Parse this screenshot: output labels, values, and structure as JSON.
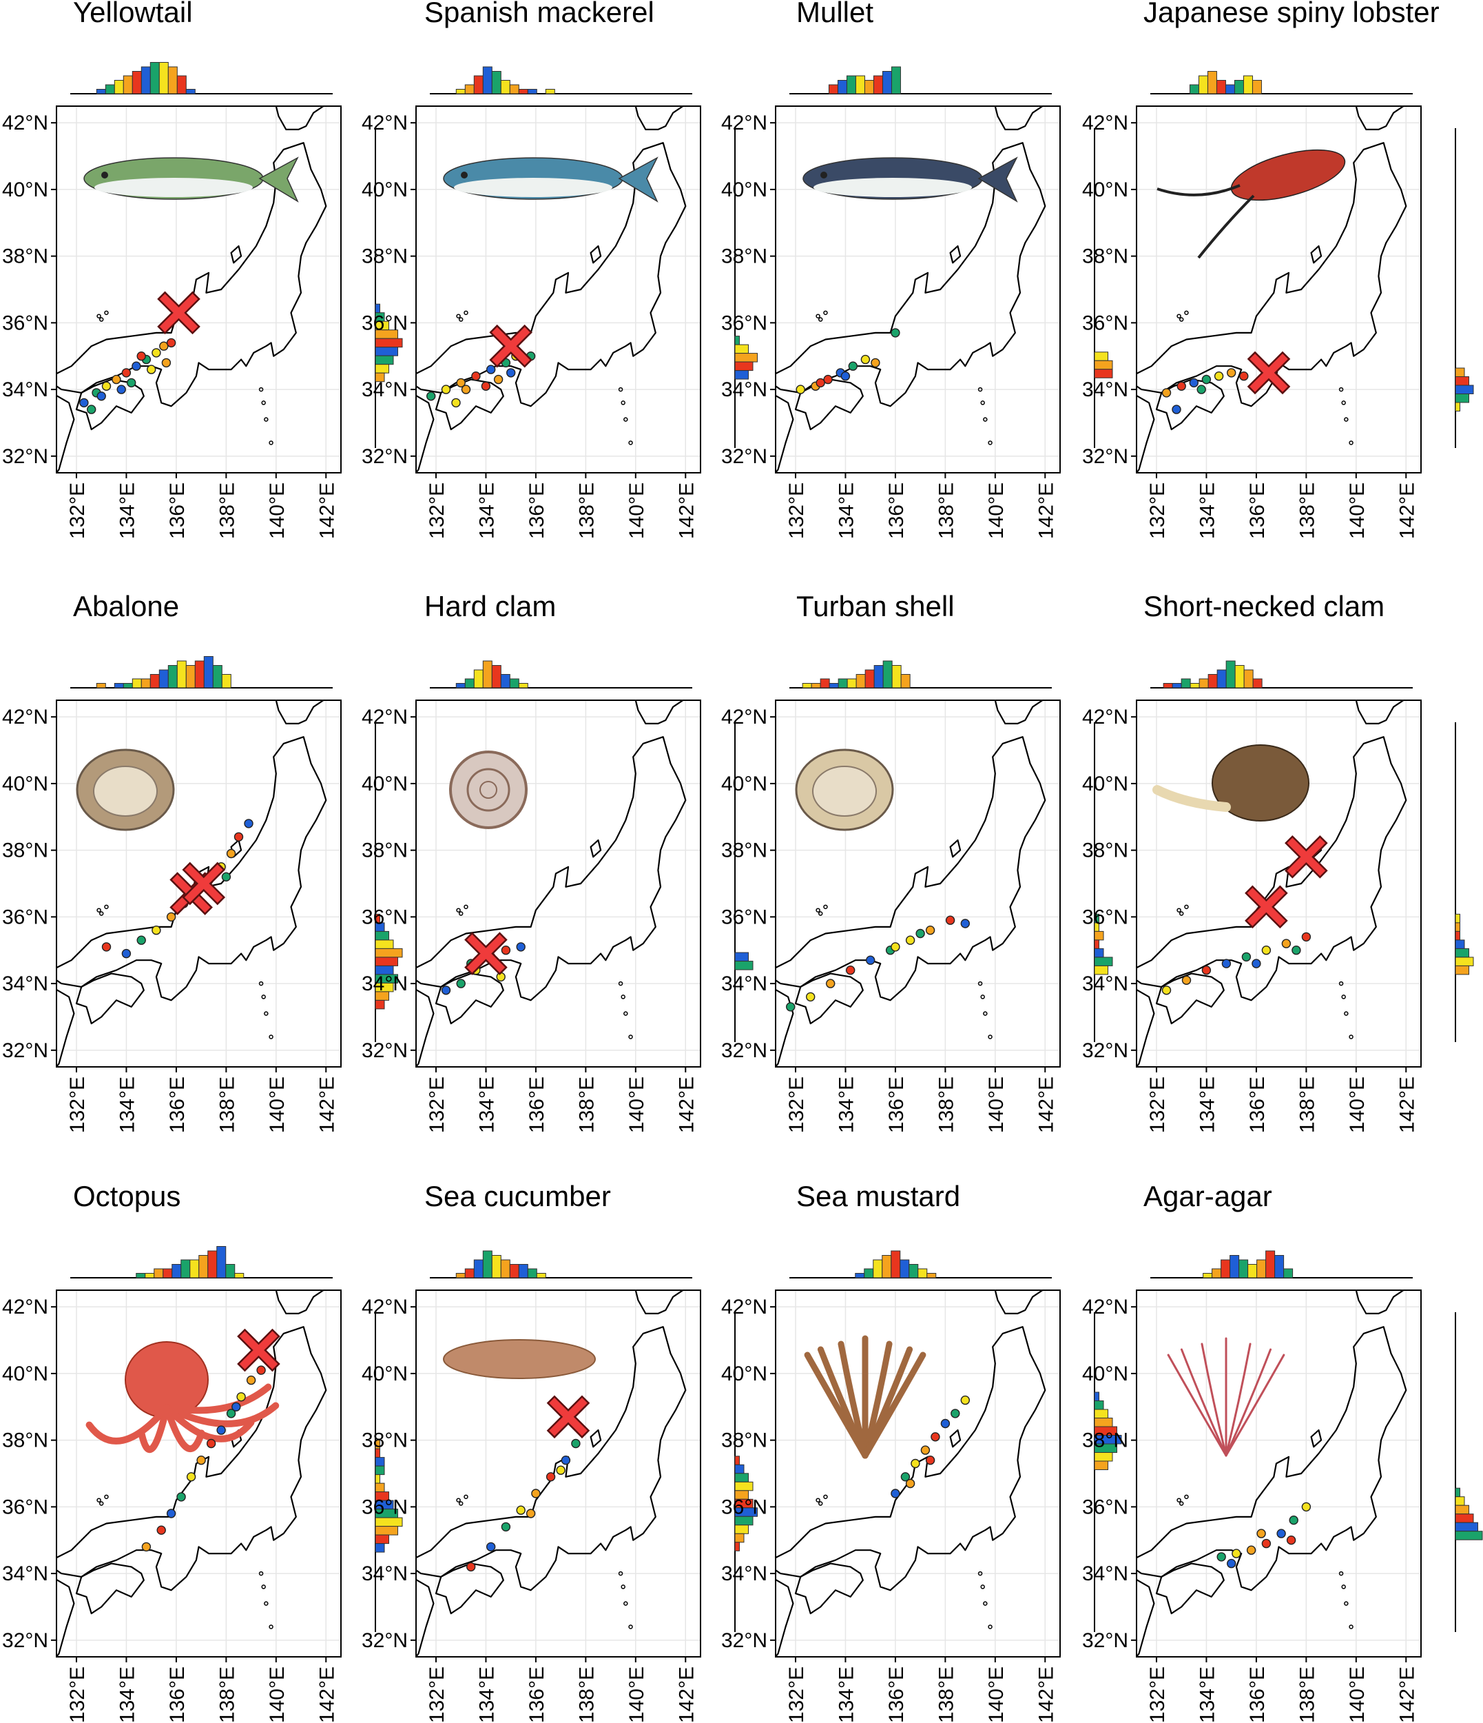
{
  "chart_data": {
    "type": "scatter",
    "axes": {
      "lon_ticks": [
        "132°E",
        "134°E",
        "136°E",
        "138°E",
        "140°E",
        "142°E"
      ],
      "lat_ticks": [
        "32°N",
        "34°N",
        "36°N",
        "38°N",
        "40°N",
        "42°N"
      ],
      "xlim": [
        131.2,
        142.6
      ],
      "ylim": [
        31.5,
        42.5
      ],
      "grid": true
    },
    "colors": {
      "blue": "#1f5fd6",
      "green": "#1aa36a",
      "yellow": "#f5e21e",
      "orange": "#f5a31e",
      "red": "#e8361e",
      "cross": "#ef3b3b"
    },
    "panels": [
      {
        "title": "Yellowtail",
        "icon": "fish-icon",
        "icon_color": "#7aa66a",
        "points": [
          [
            132.3,
            33.6
          ],
          [
            132.8,
            33.9
          ],
          [
            133.2,
            34.1
          ],
          [
            133.6,
            34.3
          ],
          [
            134.0,
            34.5
          ],
          [
            134.4,
            34.7
          ],
          [
            134.8,
            34.9
          ],
          [
            135.2,
            35.1
          ],
          [
            135.5,
            35.3
          ],
          [
            135.8,
            35.4
          ],
          [
            133.0,
            33.8
          ],
          [
            134.2,
            34.2
          ],
          [
            135.0,
            34.6
          ],
          [
            135.6,
            34.8
          ],
          [
            134.6,
            35.0
          ],
          [
            133.8,
            34.0
          ],
          [
            132.6,
            33.4
          ]
        ],
        "cross": [
          [
            136.1,
            36.3
          ]
        ],
        "top_hist": [
          1,
          2,
          3,
          4,
          5,
          6,
          7,
          7,
          6,
          4,
          1
        ],
        "top_start": 0.1,
        "side_hist": [
          1,
          2,
          3,
          5,
          6,
          5,
          4,
          3,
          2
        ],
        "side_start": 0.55
      },
      {
        "title": "Spanish mackerel",
        "icon": "fish-icon",
        "icon_color": "#4a8aa8",
        "points": [
          [
            131.8,
            33.8
          ],
          [
            132.4,
            34.0
          ],
          [
            133.0,
            34.2
          ],
          [
            133.6,
            34.4
          ],
          [
            134.2,
            34.6
          ],
          [
            134.8,
            34.8
          ],
          [
            135.2,
            35.0
          ],
          [
            133.2,
            34.0
          ],
          [
            134.0,
            34.1
          ],
          [
            135.0,
            34.5
          ],
          [
            135.8,
            35.0
          ],
          [
            132.8,
            33.6
          ],
          [
            134.5,
            34.3
          ]
        ],
        "cross": [
          [
            135.0,
            35.3
          ]
        ],
        "top_hist": [
          1,
          2,
          4,
          6,
          5,
          3,
          2,
          1,
          1,
          0,
          1
        ],
        "top_start": 0.1,
        "side_hist": [
          1,
          3,
          5,
          4,
          3
        ],
        "side_start": 0.65
      },
      {
        "title": "Mullet",
        "icon": "fish-icon",
        "icon_color": "#3a4a66",
        "points": [
          [
            132.2,
            34.0
          ],
          [
            132.8,
            34.1
          ],
          [
            133.3,
            34.3
          ],
          [
            133.8,
            34.5
          ],
          [
            134.3,
            34.7
          ],
          [
            134.8,
            34.9
          ],
          [
            135.2,
            34.8
          ],
          [
            133.0,
            34.2
          ],
          [
            134.0,
            34.4
          ],
          [
            136.0,
            35.7
          ]
        ],
        "cross": [],
        "top_hist": [
          2,
          3,
          4,
          4,
          3,
          4,
          5,
          6
        ],
        "top_start": 0.15,
        "side_hist": [
          3,
          4,
          4
        ],
        "side_start": 0.7
      },
      {
        "title": "Japanese spiny lobster",
        "icon": "lobster-icon",
        "icon_color": "#c0392b",
        "points": [
          [
            132.4,
            33.9
          ],
          [
            133.0,
            34.1
          ],
          [
            133.5,
            34.2
          ],
          [
            134.0,
            34.3
          ],
          [
            134.5,
            34.4
          ],
          [
            135.0,
            34.5
          ],
          [
            135.5,
            34.4
          ],
          [
            132.8,
            33.4
          ],
          [
            133.8,
            34.0
          ]
        ],
        "cross": [
          [
            136.5,
            34.5
          ]
        ],
        "top_hist": [
          2,
          4,
          5,
          3,
          2,
          3,
          4,
          3
        ],
        "top_start": 0.15,
        "side_hist": [
          2,
          3,
          4,
          3,
          1
        ],
        "side_start": 0.75
      },
      {
        "title": "Abalone",
        "icon": "abalone-icon",
        "icon_color": "#b39a7a",
        "points": [
          [
            133.2,
            35.1
          ],
          [
            134.0,
            34.9
          ],
          [
            134.6,
            35.3
          ],
          [
            135.2,
            35.6
          ],
          [
            135.8,
            36.0
          ],
          [
            136.3,
            36.4
          ],
          [
            136.8,
            36.8
          ],
          [
            137.3,
            37.1
          ],
          [
            137.8,
            37.5
          ],
          [
            138.2,
            37.9
          ],
          [
            138.5,
            38.4
          ],
          [
            138.9,
            38.8
          ],
          [
            138.0,
            37.2
          ],
          [
            137.0,
            36.4
          ]
        ],
        "cross": [
          [
            136.6,
            36.7
          ],
          [
            137.1,
            37.0
          ]
        ],
        "top_hist": [
          1,
          0,
          1,
          1,
          2,
          2,
          3,
          4,
          5,
          6,
          5,
          6,
          7,
          5,
          3
        ],
        "top_start": 0.1,
        "side_hist": [
          1,
          2,
          3,
          4,
          6,
          5,
          4,
          5,
          4,
          3,
          2
        ],
        "side_start": 0.6
      },
      {
        "title": "Hard clam",
        "icon": "shell-icon",
        "icon_color": "#8a6a5a",
        "points": [
          [
            132.4,
            33.8
          ],
          [
            133.0,
            34.0
          ],
          [
            133.6,
            34.4
          ],
          [
            134.2,
            34.8
          ],
          [
            134.8,
            35.0
          ],
          [
            135.4,
            35.1
          ],
          [
            133.4,
            34.6
          ],
          [
            134.6,
            34.2
          ]
        ],
        "cross": [
          [
            134.0,
            34.9
          ]
        ],
        "top_hist": [
          1,
          2,
          4,
          6,
          5,
          3,
          2,
          1
        ],
        "top_start": 0.1,
        "side_hist": [
          3,
          4
        ],
        "side_start": 0.72
      },
      {
        "title": "Turban shell",
        "icon": "clam-icon",
        "icon_color": "#d9c8a5",
        "points": [
          [
            131.8,
            33.3
          ],
          [
            132.6,
            33.6
          ],
          [
            133.4,
            34.0
          ],
          [
            134.2,
            34.4
          ],
          [
            135.0,
            34.7
          ],
          [
            135.8,
            35.0
          ],
          [
            136.6,
            35.3
          ],
          [
            137.4,
            35.6
          ],
          [
            138.2,
            35.9
          ],
          [
            138.8,
            35.8
          ],
          [
            137.0,
            35.5
          ],
          [
            136.0,
            35.1
          ]
        ],
        "cross": [],
        "top_hist": [
          1,
          1,
          2,
          1,
          2,
          2,
          3,
          4,
          5,
          6,
          5,
          3
        ],
        "top_start": 0.05,
        "side_hist": [
          1,
          1,
          2,
          1,
          2,
          4,
          3
        ],
        "side_start": 0.6
      },
      {
        "title": "Short-necked clam",
        "icon": "snail-icon",
        "icon_color": "#7a5a3a",
        "points": [
          [
            132.4,
            33.8
          ],
          [
            133.2,
            34.1
          ],
          [
            134.0,
            34.4
          ],
          [
            134.8,
            34.6
          ],
          [
            135.6,
            34.8
          ],
          [
            136.4,
            35.0
          ],
          [
            137.2,
            35.2
          ],
          [
            138.0,
            35.4
          ],
          [
            136.0,
            34.6
          ],
          [
            137.6,
            35.0
          ]
        ],
        "cross": [
          [
            138.0,
            37.8
          ],
          [
            136.4,
            36.3
          ]
        ],
        "top_hist": [
          1,
          1,
          2,
          1,
          2,
          3,
          4,
          6,
          5,
          4,
          2
        ],
        "top_start": 0.05,
        "side_hist": [
          1,
          1,
          1,
          2,
          3,
          4,
          3
        ],
        "side_start": 0.6
      },
      {
        "title": "Octopus",
        "icon": "octopus-icon",
        "icon_color": "#e0584a",
        "points": [
          [
            134.8,
            34.8
          ],
          [
            135.4,
            35.3
          ],
          [
            135.8,
            35.8
          ],
          [
            136.2,
            36.3
          ],
          [
            136.6,
            36.9
          ],
          [
            137.0,
            37.4
          ],
          [
            137.4,
            37.9
          ],
          [
            137.8,
            38.3
          ],
          [
            138.2,
            38.8
          ],
          [
            138.6,
            39.3
          ],
          [
            139.0,
            39.8
          ],
          [
            139.4,
            40.1
          ],
          [
            138.4,
            39.0
          ]
        ],
        "cross": [
          [
            139.3,
            40.7
          ]
        ],
        "top_hist": [
          1,
          1,
          2,
          2,
          3,
          4,
          4,
          5,
          6,
          7,
          3,
          1
        ],
        "top_start": 0.25,
        "side_hist": [
          1,
          1,
          2,
          2,
          1,
          2,
          3,
          4,
          5,
          6,
          5,
          3,
          2
        ],
        "side_start": 0.4
      },
      {
        "title": "Sea cucumber",
        "icon": "cucumber-icon",
        "icon_color": "#c08a6a",
        "points": [
          [
            133.4,
            34.2
          ],
          [
            134.2,
            34.8
          ],
          [
            134.8,
            35.4
          ],
          [
            135.4,
            35.9
          ],
          [
            136.0,
            36.4
          ],
          [
            136.6,
            36.9
          ],
          [
            137.2,
            37.4
          ],
          [
            137.6,
            37.9
          ],
          [
            137.0,
            37.1
          ],
          [
            135.8,
            35.8
          ]
        ],
        "cross": [
          [
            137.3,
            38.7
          ]
        ],
        "top_hist": [
          1,
          2,
          4,
          6,
          5,
          4,
          3,
          3,
          2,
          1
        ],
        "top_start": 0.1,
        "side_hist": [
          1,
          2,
          3,
          4,
          3,
          4,
          5,
          4,
          3,
          2,
          1
        ],
        "side_start": 0.45
      },
      {
        "title": "Sea mustard",
        "icon": "seaweed-icon",
        "icon_color": "#a0683f",
        "points": [
          [
            136.0,
            36.4
          ],
          [
            136.4,
            36.9
          ],
          [
            136.8,
            37.3
          ],
          [
            137.2,
            37.7
          ],
          [
            137.6,
            38.1
          ],
          [
            138.0,
            38.5
          ],
          [
            138.4,
            38.8
          ],
          [
            138.8,
            39.2
          ],
          [
            136.6,
            36.7
          ],
          [
            137.4,
            37.4
          ]
        ],
        "cross": [],
        "top_hist": [
          1,
          2,
          4,
          5,
          6,
          4,
          3,
          2,
          1
        ],
        "top_start": 0.25,
        "side_hist": [
          1,
          2,
          3,
          4,
          5,
          6,
          5,
          4,
          3
        ],
        "side_start": 0.25
      },
      {
        "title": "Agar-agar",
        "icon": "seaweed-icon",
        "icon_color": "#c0505a",
        "points": [
          [
            134.6,
            34.5
          ],
          [
            135.2,
            34.6
          ],
          [
            135.8,
            34.7
          ],
          [
            136.4,
            34.9
          ],
          [
            137.0,
            35.2
          ],
          [
            137.5,
            35.6
          ],
          [
            138.0,
            36.0
          ],
          [
            136.2,
            35.2
          ],
          [
            137.4,
            35.0
          ],
          [
            135.0,
            34.3
          ]
        ],
        "cross": [],
        "top_hist": [
          1,
          2,
          4,
          5,
          4,
          3,
          4,
          6,
          5,
          2
        ],
        "top_start": 0.2,
        "side_hist": [
          1,
          2,
          3,
          4,
          5,
          6
        ],
        "side_start": 0.55
      }
    ]
  }
}
